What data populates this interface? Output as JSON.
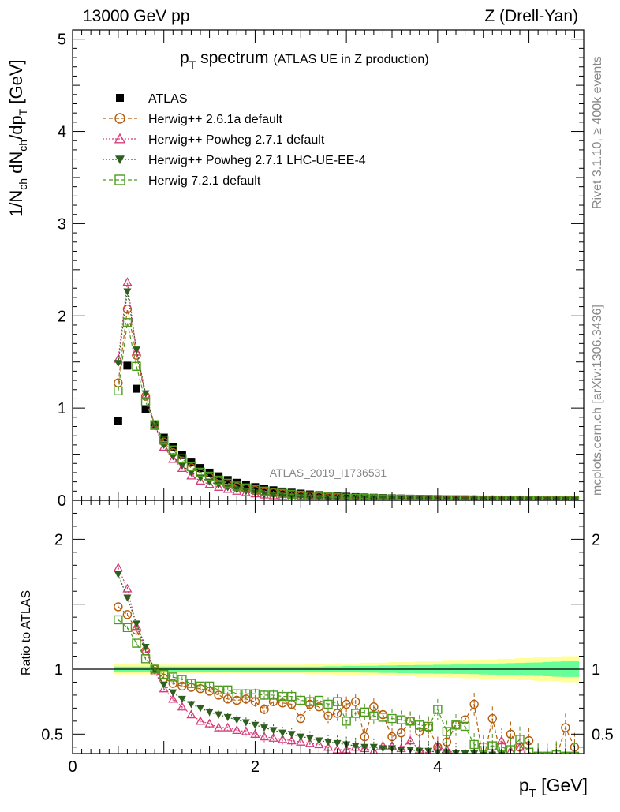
{
  "header": {
    "energy": "13000 GeV pp",
    "process": "Z (Drell-Yan)"
  },
  "side": {
    "rivet": "Rivet 3.1.10, ≥ 400k events",
    "mcplots": "mcplots.cern.ch [arXiv:1306.3436]"
  },
  "chart_data": {
    "type": "scatter",
    "title_main": "p",
    "title_sub": "T",
    "title_rest": " spectrum",
    "title_small": "(ATLAS UE in Z production)",
    "analysis": "ATLAS_2019_I1736531",
    "xlabel_main": "p",
    "xlabel_sub": "T",
    "xlabel_unit": " [GeV]",
    "ylabel_top": "1/N",
    "ylabel_top_sub1": "ch",
    "ylabel_top_mid": " dN",
    "ylabel_top_sub2": "ch",
    "ylabel_top_end": "/dp",
    "ylabel_top_sub3": "T",
    "ylabel_top_unit": " [GeV]",
    "ylabel_ratio": "Ratio to ATLAS",
    "xlim": [
      0,
      5.6
    ],
    "ylim_top": [
      0,
      5.1
    ],
    "ylim_ratio": [
      0.35,
      2.3
    ],
    "x_ticks": [
      "0",
      "2",
      "4"
    ],
    "x_tick_values": [
      0,
      2,
      4
    ],
    "y_ticks_top": [
      "0",
      "1",
      "2",
      "3",
      "4",
      "5"
    ],
    "y_tick_values_top": [
      0,
      1,
      2,
      3,
      4,
      5
    ],
    "y_ticks_ratio": [
      "0.5",
      "1",
      "2"
    ],
    "y_tick_values_ratio": [
      0.5,
      1,
      2
    ],
    "x": [
      0.5,
      0.6,
      0.7,
      0.8,
      0.9,
      1.0,
      1.1,
      1.2,
      1.3,
      1.4,
      1.5,
      1.6,
      1.7,
      1.8,
      1.9,
      2.0,
      2.1,
      2.2,
      2.3,
      2.4,
      2.5,
      2.6,
      2.7,
      2.8,
      2.9,
      3.0,
      3.1,
      3.2,
      3.3,
      3.4,
      3.5,
      3.6,
      3.7,
      3.8,
      3.9,
      4.0,
      4.1,
      4.2,
      4.3,
      4.4,
      4.5,
      4.6,
      4.7,
      4.8,
      4.9,
      5.0,
      5.1,
      5.2,
      5.3,
      5.4,
      5.5
    ],
    "series": [
      {
        "name": "ATLAS",
        "color": "#000000",
        "marker": "square-filled",
        "line": "none",
        "values": [
          0.86,
          1.46,
          1.21,
          0.99,
          0.82,
          0.68,
          0.58,
          0.49,
          0.41,
          0.35,
          0.3,
          0.26,
          0.22,
          0.19,
          0.165,
          0.143,
          0.125,
          0.109,
          0.095,
          0.083,
          0.073,
          0.064,
          0.056,
          0.05,
          0.044,
          0.039,
          0.035,
          0.031,
          0.028,
          0.025,
          0.022,
          0.02,
          0.018,
          0.016,
          0.015,
          0.013,
          0.012,
          0.011,
          0.01,
          0.009,
          0.008,
          0.0075,
          0.007,
          0.0063,
          0.0057,
          0.0052,
          0.0047,
          0.0043,
          0.0039,
          0.0036,
          0.0033
        ]
      },
      {
        "name": "Herwig++ 2.6.1a default",
        "color": "#b35c0a",
        "marker": "circle-open",
        "line": "dashed",
        "ratio": [
          1.48,
          1.42,
          1.3,
          1.14,
          1.0,
          0.93,
          0.89,
          0.87,
          0.86,
          0.85,
          0.83,
          0.8,
          0.77,
          0.76,
          0.77,
          0.75,
          0.69,
          0.75,
          0.74,
          0.73,
          0.62,
          0.73,
          0.71,
          0.64,
          0.66,
          0.73,
          0.75,
          0.48,
          0.71,
          0.65,
          0.48,
          0.51,
          0.6,
          0.52,
          0.55,
          0.4,
          0.44,
          0.57,
          0.61,
          0.73,
          0.29,
          0.62,
          0.32,
          0.5,
          0.4,
          0.45,
          0.3,
          0.29,
          0.32,
          0.55,
          0.4
        ]
      },
      {
        "name": "Herwig++ Powheg 2.7.1 default",
        "color": "#d63c78",
        "marker": "triangle-open",
        "line": "dotted",
        "ratio": [
          1.78,
          1.62,
          1.33,
          1.15,
          0.98,
          0.85,
          0.77,
          0.71,
          0.65,
          0.6,
          0.58,
          0.55,
          0.55,
          0.53,
          0.52,
          0.5,
          0.48,
          0.47,
          0.46,
          0.45,
          0.44,
          0.43,
          0.42,
          0.4,
          0.38,
          0.38,
          0.4,
          0.39,
          0.37,
          0.41,
          0.41,
          0.39,
          0.45,
          0.38,
          0.35,
          0.4,
          0.38,
          0.35,
          0.35,
          0.33,
          0.3,
          0.35,
          0.45,
          0.37,
          0.4,
          0.32,
          0.28,
          0.28,
          0.28,
          0.28,
          0.28
        ]
      },
      {
        "name": "Herwig++ Powheg 2.7.1 LHC-UE-EE-4",
        "color": "#2f5f1f",
        "marker": "triangle-down-filled",
        "line": "dotted",
        "ratio": [
          1.73,
          1.55,
          1.35,
          1.17,
          0.99,
          0.88,
          0.82,
          0.77,
          0.73,
          0.7,
          0.67,
          0.65,
          0.63,
          0.61,
          0.59,
          0.57,
          0.55,
          0.53,
          0.51,
          0.5,
          0.48,
          0.47,
          0.45,
          0.44,
          0.43,
          0.42,
          0.41,
          0.4,
          0.4,
          0.39,
          0.39,
          0.38,
          0.38,
          0.37,
          0.37,
          0.36,
          0.36,
          0.35,
          0.35,
          0.35,
          0.34,
          0.34,
          0.34,
          0.33,
          0.33,
          0.33,
          0.32,
          0.32,
          0.32,
          0.31,
          0.31
        ]
      },
      {
        "name": "Herwig 7.2.1 default",
        "color": "#4c9b1f",
        "marker": "square-open",
        "line": "dashed",
        "ratio": [
          1.38,
          1.32,
          1.2,
          1.08,
          1.0,
          0.96,
          0.94,
          0.92,
          0.89,
          0.87,
          0.87,
          0.84,
          0.84,
          0.81,
          0.81,
          0.81,
          0.8,
          0.8,
          0.79,
          0.79,
          0.76,
          0.75,
          0.76,
          0.73,
          0.75,
          0.6,
          0.66,
          0.67,
          0.64,
          0.63,
          0.62,
          0.61,
          0.6,
          0.57,
          0.56,
          0.69,
          0.52,
          0.57,
          0.56,
          0.42,
          0.4,
          0.41,
          0.4,
          0.38,
          0.46,
          0.36,
          0.33,
          0.33,
          0.34,
          0.33,
          0.33
        ]
      }
    ],
    "ratio_band": {
      "name": "ATLAS uncertainty",
      "colors": [
        "#ffff99",
        "#66ff99"
      ],
      "inner": [
        0.02,
        0.02,
        0.02,
        0.02,
        0.02,
        0.02,
        0.02,
        0.02,
        0.02,
        0.02,
        0.02,
        0.02,
        0.02,
        0.02,
        0.02,
        0.02,
        0.02,
        0.02,
        0.02,
        0.02,
        0.02,
        0.02,
        0.02,
        0.022,
        0.022,
        0.024,
        0.024,
        0.026,
        0.026,
        0.028,
        0.028,
        0.03,
        0.03,
        0.032,
        0.032,
        0.034,
        0.034,
        0.036,
        0.036,
        0.038,
        0.04,
        0.042,
        0.044,
        0.046,
        0.048,
        0.05,
        0.052,
        0.055,
        0.058,
        0.06,
        0.06
      ],
      "outer": [
        0.04,
        0.04,
        0.04,
        0.04,
        0.04,
        0.035,
        0.035,
        0.035,
        0.035,
        0.035,
        0.035,
        0.035,
        0.035,
        0.035,
        0.035,
        0.035,
        0.035,
        0.035,
        0.035,
        0.035,
        0.035,
        0.04,
        0.04,
        0.04,
        0.045,
        0.045,
        0.045,
        0.05,
        0.05,
        0.05,
        0.055,
        0.055,
        0.055,
        0.06,
        0.06,
        0.06,
        0.065,
        0.065,
        0.07,
        0.07,
        0.075,
        0.075,
        0.08,
        0.08,
        0.085,
        0.085,
        0.09,
        0.09,
        0.095,
        0.1,
        0.1
      ]
    }
  }
}
